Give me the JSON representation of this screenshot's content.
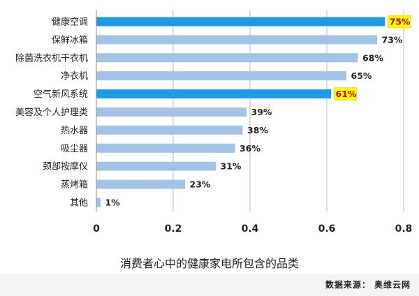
{
  "chart_data": {
    "type": "bar",
    "orientation": "horizontal",
    "title": "消费者心中的健康家电所包含的品类",
    "categories": [
      "健康空调",
      "保鲜冰箱",
      "除菌洗衣机干衣机",
      "净衣机",
      "空气新风系统",
      "美容及个人护理类",
      "热水器",
      "吸尘器",
      "颈部按摩仪",
      "蒸烤箱",
      "其他"
    ],
    "values": [
      0.75,
      0.73,
      0.68,
      0.65,
      0.61,
      0.39,
      0.38,
      0.36,
      0.31,
      0.23,
      0.01
    ],
    "value_labels": [
      "75%",
      "73%",
      "68%",
      "65%",
      "61%",
      "39%",
      "38%",
      "36%",
      "31%",
      "23%",
      "1%"
    ],
    "highlighted": [
      0,
      4
    ],
    "xlim": [
      0,
      0.8
    ],
    "x_ticks": [
      "0",
      "0.2",
      "0.4",
      "0.6",
      "0.8"
    ],
    "grid": "vertical",
    "colors": {
      "bar": "#a3c3e6",
      "bar_highlight": "#1e9be8",
      "label_highlight_bg": "#ffff00",
      "label_highlight_text": "#d40000",
      "grid": "#bdbdbd"
    }
  },
  "source": "数据来源：  奥维云网"
}
